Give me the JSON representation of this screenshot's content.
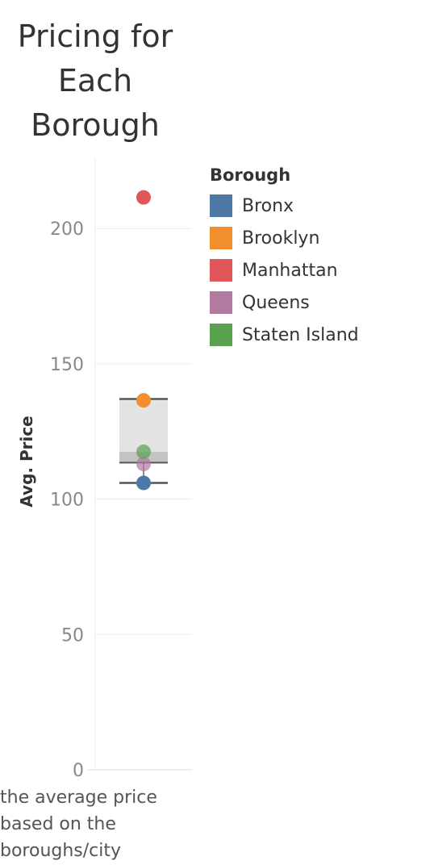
{
  "title": "Pricing for Each Borough",
  "caption": "the average price based on the boroughs/city",
  "chart_data": {
    "type": "scatter",
    "title": "Pricing for Each Borough",
    "ylabel": "Avg. Price",
    "xlabel": "",
    "ylim": [
      0,
      225
    ],
    "yticks": [
      0,
      50,
      100,
      150,
      200
    ],
    "grid": true,
    "legend_position": "right",
    "legend_title": "Borough",
    "series": [
      {
        "name": "Bronx",
        "value": 106,
        "color": "#4e79a7"
      },
      {
        "name": "Brooklyn",
        "value": 136.5,
        "color": "#f28e2b"
      },
      {
        "name": "Manhattan",
        "value": 211.5,
        "color": "#e15759"
      },
      {
        "name": "Queens",
        "value": 113,
        "color": "#b07aa1"
      },
      {
        "name": "Staten Island",
        "value": 117.5,
        "color": "#59a14f"
      }
    ],
    "boxplot": {
      "lower_whisker": 106,
      "q1": 113.5,
      "median": 117.5,
      "q3": 136.5,
      "upper_whisker": 137
    }
  }
}
